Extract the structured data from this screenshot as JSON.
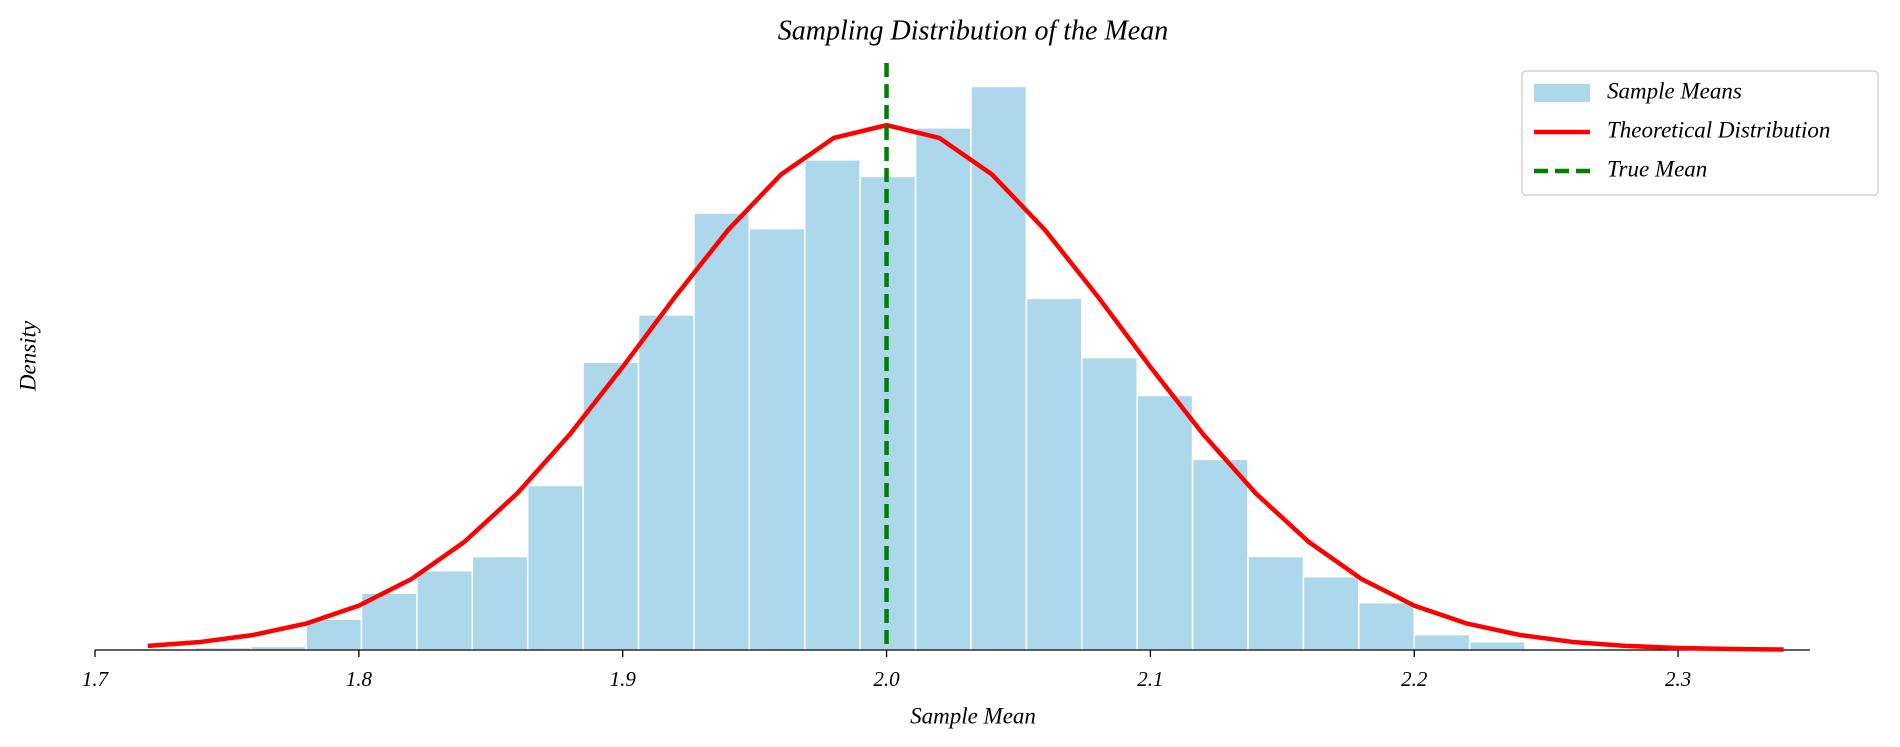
{
  "chart_data": {
    "type": "histogram",
    "title": "Sampling Distribution of the Mean",
    "x_label": "Sample Mean",
    "y_label": "Density",
    "xlim": [
      1.7,
      2.35
    ],
    "ylim": [
      0,
      5
    ],
    "xticks": [
      1.7,
      1.8,
      1.9,
      {
        "value": 2,
        "label": "2.0"
      },
      2.1,
      2.2,
      2.3
    ],
    "legend": "upper right",
    "histogram": {
      "name": "Sample Means",
      "color": "#add8ec",
      "bins": [
        1.738,
        1.759,
        1.78,
        1.801,
        1.822,
        1.843,
        1.864,
        1.885,
        1.906,
        1.927,
        1.948,
        1.969,
        1.99,
        2.011,
        2.032,
        2.053,
        2.074,
        2.095,
        2.116,
        2.137,
        2.158,
        2.179,
        2.2,
        2.221,
        2.242
      ],
      "values": [
        0.02,
        0.03,
        0.26,
        0.48,
        0.67,
        0.79,
        1.39,
        2.43,
        2.83,
        3.69,
        3.56,
        4.14,
        4.0,
        4.41,
        4.76,
        2.97,
        2.47,
        2.15,
        1.61,
        0.79,
        0.62,
        0.4,
        0.13,
        0.07
      ]
    },
    "curve": {
      "name": "Theoretical Distribution",
      "color": "#ff0000",
      "x": [
        1.72,
        1.74,
        1.76,
        1.78,
        1.8,
        1.82,
        1.84,
        1.86,
        1.88,
        1.9,
        1.92,
        1.94,
        1.96,
        1.98,
        2.0,
        2.02,
        2.04,
        2.06,
        2.08,
        2.1,
        2.12,
        2.14,
        2.16,
        2.18,
        2.2,
        2.22,
        2.24,
        2.26,
        2.28,
        2.3,
        2.32,
        2.34
      ],
      "values": [
        0.035,
        0.068,
        0.127,
        0.223,
        0.375,
        0.6,
        0.913,
        1.322,
        1.822,
        2.391,
        2.987,
        3.549,
        4.016,
        4.325,
        4.433,
        4.325,
        4.016,
        3.549,
        2.987,
        2.391,
        1.822,
        1.322,
        0.913,
        0.6,
        0.375,
        0.223,
        0.127,
        0.068,
        0.035,
        0.017,
        0.008,
        0.004
      ]
    },
    "reference_line": {
      "name": "True Mean",
      "color": "#008000",
      "x": 2
    }
  }
}
